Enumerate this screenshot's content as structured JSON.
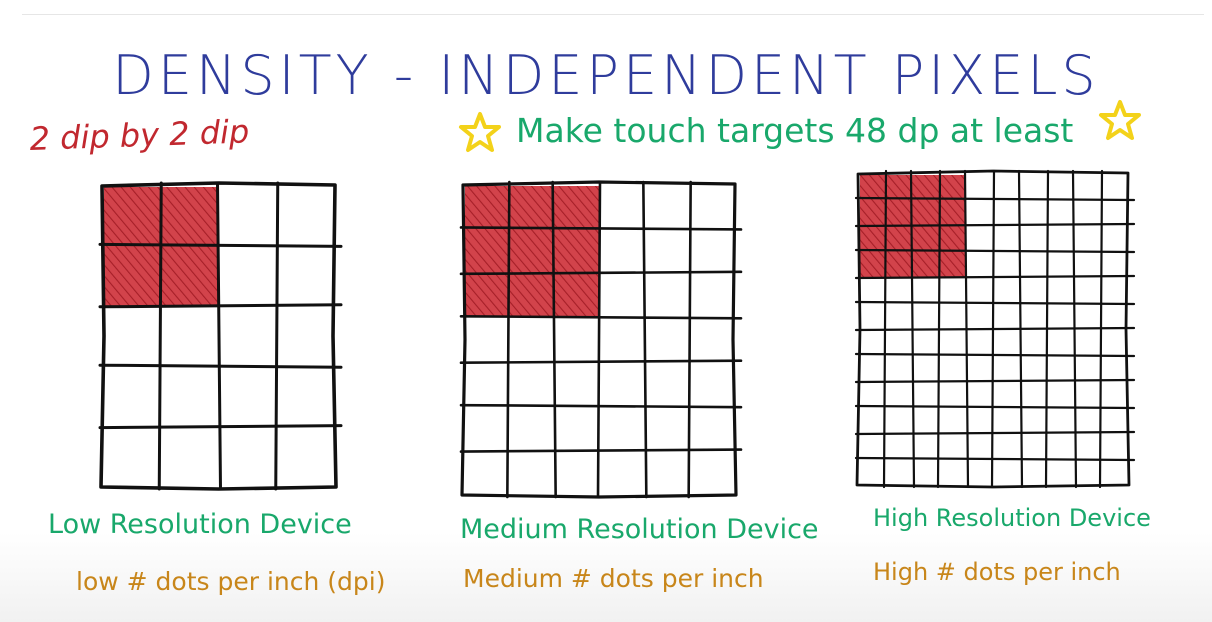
{
  "title": "DENSITY - INDEPENDENT PIXELS",
  "size_note": "2 dip by 2 dip",
  "tip": "Make touch targets 48 dp at least",
  "colors": {
    "title": "#2f3c9c",
    "size_note": "#c1282f",
    "tip": "#19a86b",
    "device_label": "#19a86b",
    "dpi_label": "#c8861a",
    "star": "#f3d21a",
    "fill": "#c9303a",
    "ink": "#111111"
  },
  "grids": [
    {
      "device_label": "Low Resolution Device",
      "dpi_label": "low # dots per inch (dpi)",
      "cols": 4,
      "rows": 5,
      "filled_cols": 2,
      "filled_rows": 2
    },
    {
      "device_label": "Medium Resolution Device",
      "dpi_label": "Medium # dots per inch",
      "cols": 6,
      "rows": 7,
      "filled_cols": 3,
      "filled_rows": 3
    },
    {
      "device_label": "High Resolution Device",
      "dpi_label": "High # dots per inch",
      "cols": 10,
      "rows": 12,
      "filled_cols": 4,
      "filled_rows": 4
    }
  ]
}
